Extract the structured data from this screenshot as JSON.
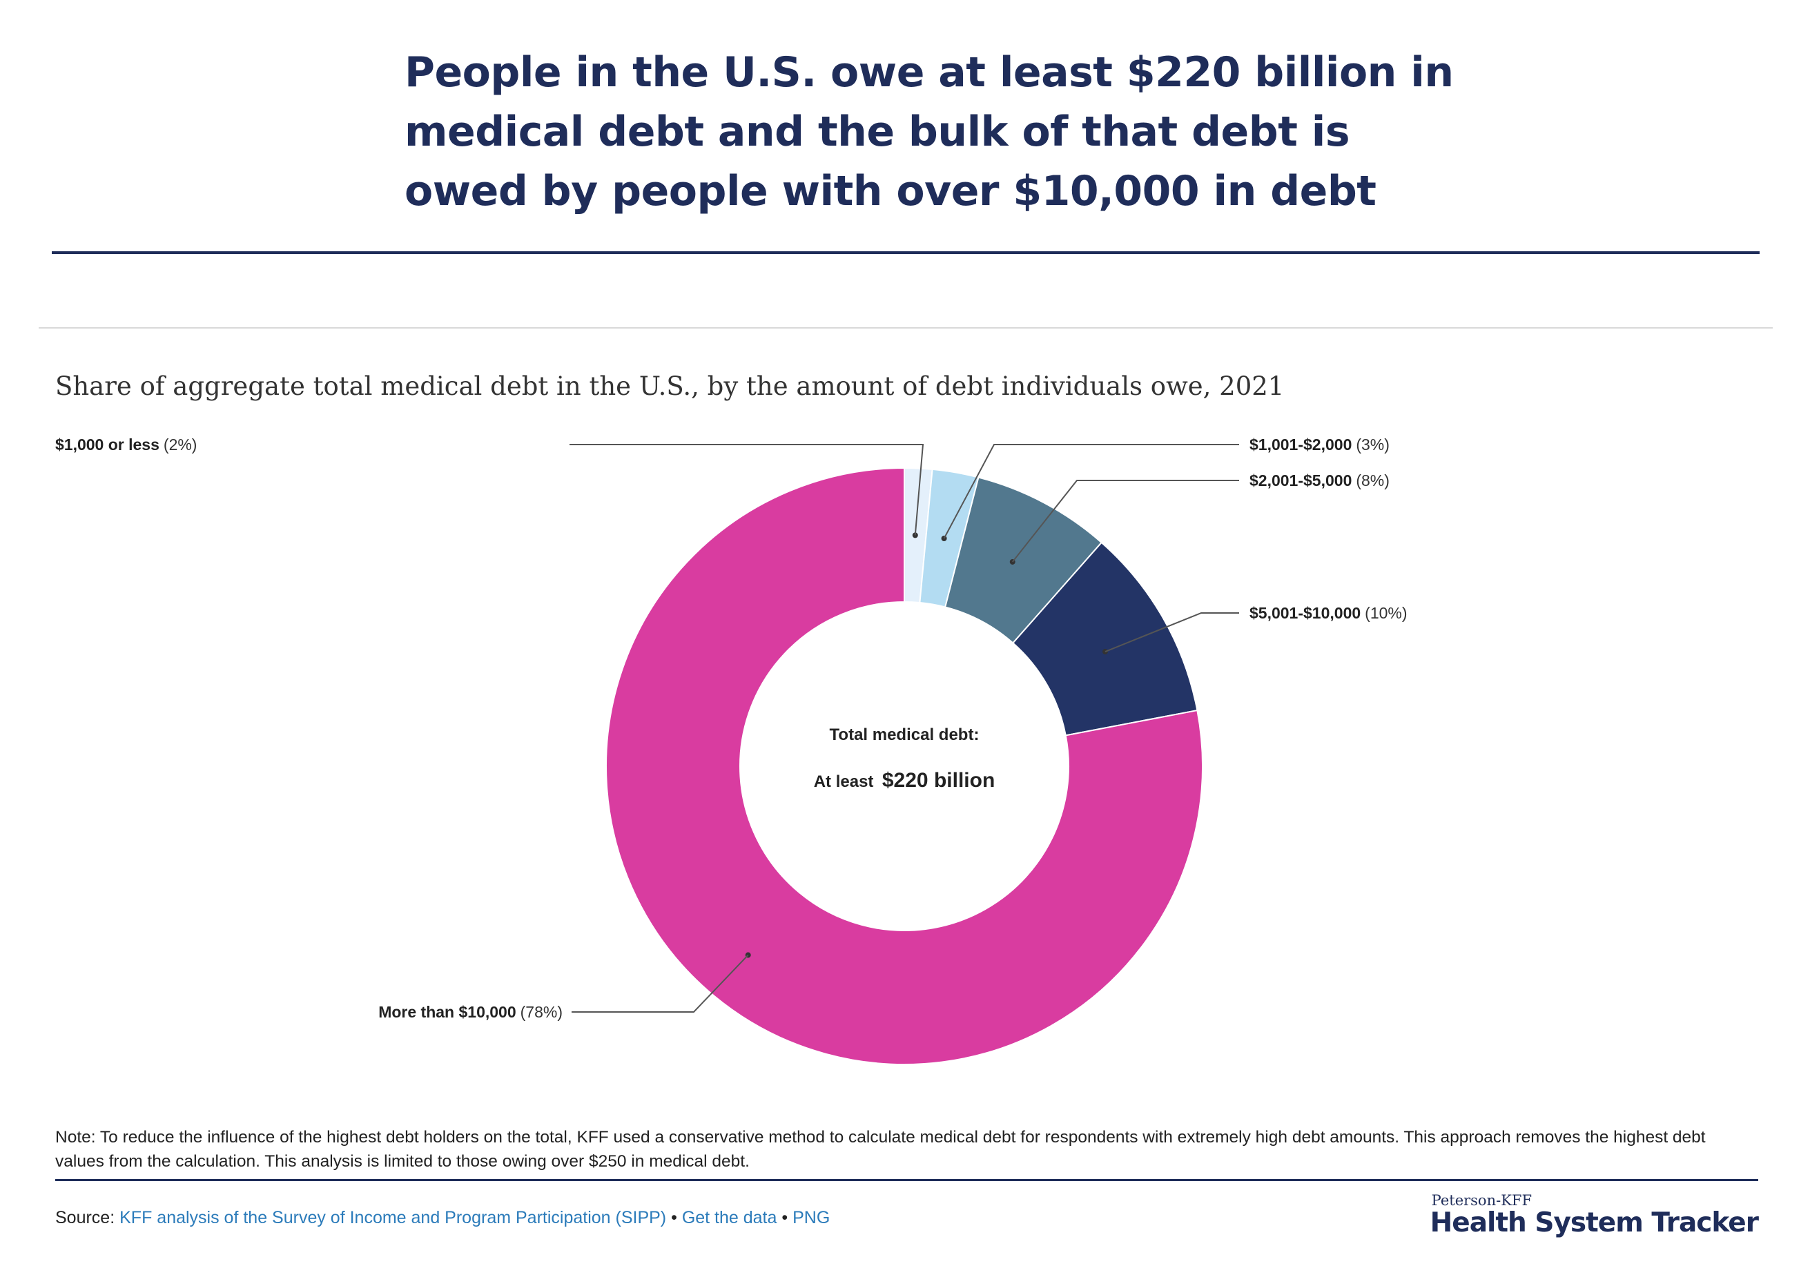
{
  "headline": {
    "line1": "People in the U.S. owe at least $220 billion in",
    "line2": "medical debt and the bulk of that debt is",
    "line3": "owed by people with over $10,000 in debt"
  },
  "chart_data": {
    "type": "pie",
    "subtitle": "Share of aggregate total medical debt in the U.S., by the amount of debt individuals owe, 2021",
    "center_label": {
      "line1": "Total medical debt:",
      "line2_prefix": "At least",
      "line2_value": "$220 billion"
    },
    "slices": [
      {
        "name": "$1,000 or less",
        "pct_label": "(2%)",
        "value": 1.5,
        "color": "#e4f0fb"
      },
      {
        "name": "$1,001-$2,000",
        "pct_label": "(3%)",
        "value": 2.5,
        "color": "#b3dcf2"
      },
      {
        "name": "$2,001-$5,000",
        "pct_label": "(8%)",
        "value": 7.5,
        "color": "#52788e"
      },
      {
        "name": "$5,001-$10,000",
        "pct_label": "(10%)",
        "value": 10.5,
        "color": "#233466"
      },
      {
        "name": "More than $10,000",
        "pct_label": "(78%)",
        "value": 78,
        "color": "#d93ca0"
      }
    ]
  },
  "note": "Note: To reduce the influence of the highest debt holders on the total, KFF used a conservative method to calculate medical debt for respondents with extremely high debt amounts. This approach removes the highest debt values from the calculation. This analysis is limited to those owing over $250 in medical debt.",
  "source": {
    "label": "Source:",
    "link1": "KFF analysis of the Survey of Income and Program Participation (SIPP)",
    "sep1": "•",
    "link2": "Get the data",
    "sep2": "•",
    "link3": "PNG"
  },
  "brand": {
    "top": "Peterson-KFF",
    "main": "Health System Tracker"
  }
}
